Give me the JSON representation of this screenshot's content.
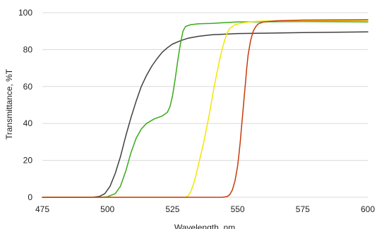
{
  "chart_data": {
    "type": "line",
    "title": "",
    "xlabel": "Wavelength, nm",
    "ylabel": "Transmittance, %T",
    "xlim": [
      475,
      600
    ],
    "ylim": [
      0,
      100
    ],
    "xticks": [
      475,
      500,
      525,
      550,
      575,
      600
    ],
    "yticks": [
      0,
      20,
      40,
      60,
      80,
      100
    ],
    "grid": "horizontal",
    "legend": "none",
    "series": [
      {
        "color": "#404040",
        "points": [
          [
            475,
            0
          ],
          [
            494,
            0
          ],
          [
            497,
            0.5
          ],
          [
            499,
            2
          ],
          [
            501,
            6
          ],
          [
            503,
            13
          ],
          [
            505,
            22
          ],
          [
            507,
            33
          ],
          [
            509,
            43
          ],
          [
            511,
            52
          ],
          [
            513,
            60
          ],
          [
            515,
            66
          ],
          [
            517,
            71
          ],
          [
            519,
            75
          ],
          [
            521,
            78.5
          ],
          [
            523,
            81
          ],
          [
            525,
            83
          ],
          [
            528,
            84.8
          ],
          [
            531,
            86.2
          ],
          [
            535,
            87.2
          ],
          [
            540,
            88
          ],
          [
            550,
            88.7
          ],
          [
            575,
            89.2
          ],
          [
            600,
            89.6
          ]
        ]
      },
      {
        "color": "#3aaa1a",
        "points": [
          [
            475,
            0
          ],
          [
            497,
            0
          ],
          [
            500,
            0.3
          ],
          [
            503,
            2
          ],
          [
            505,
            6
          ],
          [
            507,
            14
          ],
          [
            509,
            24
          ],
          [
            511,
            32
          ],
          [
            513,
            37
          ],
          [
            515,
            40
          ],
          [
            518,
            42.5
          ],
          [
            521,
            44
          ],
          [
            523,
            46
          ],
          [
            524,
            49
          ],
          [
            525,
            55
          ],
          [
            526,
            64
          ],
          [
            527,
            74
          ],
          [
            528,
            83
          ],
          [
            529,
            90
          ],
          [
            530,
            92.5
          ],
          [
            532,
            93.5
          ],
          [
            535,
            94
          ],
          [
            540,
            94.2
          ],
          [
            545,
            94.6
          ],
          [
            550,
            95
          ],
          [
            575,
            95.2
          ],
          [
            600,
            95
          ]
        ]
      },
      {
        "color": "#f2e600",
        "points": [
          [
            475,
            0
          ],
          [
            530,
            0
          ],
          [
            531,
            0.8
          ],
          [
            532,
            3
          ],
          [
            533,
            7
          ],
          [
            534,
            12
          ],
          [
            535,
            18
          ],
          [
            536,
            24
          ],
          [
            537,
            30
          ],
          [
            538,
            37
          ],
          [
            539,
            44
          ],
          [
            540,
            52
          ],
          [
            541,
            60
          ],
          [
            542,
            67
          ],
          [
            543,
            74
          ],
          [
            544,
            80
          ],
          [
            545,
            85
          ],
          [
            546,
            89
          ],
          [
            547,
            91.5
          ],
          [
            549,
            93.5
          ],
          [
            552,
            94.5
          ],
          [
            556,
            95.2
          ],
          [
            560,
            95.5
          ],
          [
            575,
            95.6
          ],
          [
            600,
            95.8
          ]
        ]
      },
      {
        "color": "#c83a0a",
        "points": [
          [
            475,
            0
          ],
          [
            544,
            0
          ],
          [
            546,
            0.4
          ],
          [
            547,
            1.5
          ],
          [
            548,
            4
          ],
          [
            549,
            9
          ],
          [
            550,
            17
          ],
          [
            550.5,
            23
          ],
          [
            551,
            30
          ],
          [
            551.5,
            38
          ],
          [
            552,
            46
          ],
          [
            552.5,
            54
          ],
          [
            553,
            62
          ],
          [
            553.5,
            70
          ],
          [
            554,
            77
          ],
          [
            555,
            85
          ],
          [
            556,
            90
          ],
          [
            557,
            92.5
          ],
          [
            558,
            94
          ],
          [
            560,
            95
          ],
          [
            565,
            95.6
          ],
          [
            575,
            96
          ],
          [
            600,
            96.2
          ]
        ]
      }
    ]
  }
}
